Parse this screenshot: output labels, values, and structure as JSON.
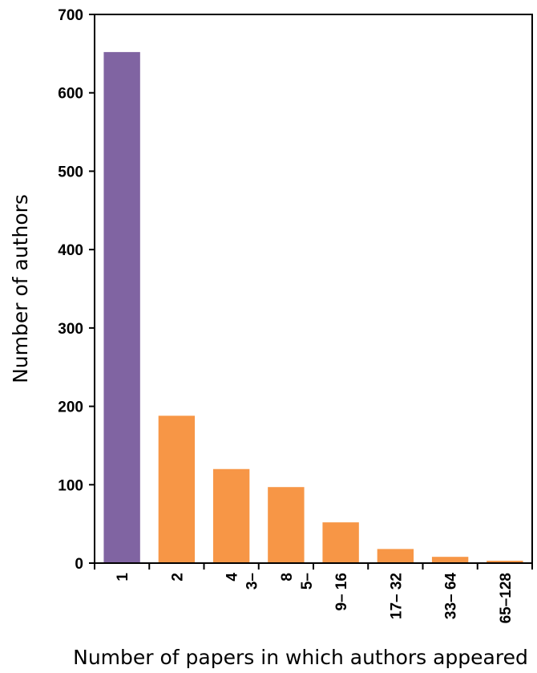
{
  "chart_data": {
    "type": "bar",
    "title": "",
    "xlabel": "Number of papers in which authors appeared",
    "ylabel": "Number of authors",
    "ylim": [
      0,
      700
    ],
    "yticks": [
      0,
      100,
      200,
      300,
      400,
      500,
      600,
      700
    ],
    "grid": false,
    "legend": "none",
    "categories": [
      "1",
      "2",
      "3– 4",
      "5– 8",
      "9– 16",
      "17– 32",
      "33– 64",
      "65–128"
    ],
    "category_lines": [
      [
        "1"
      ],
      [
        "2"
      ],
      [
        "4",
        "3–"
      ],
      [
        "8",
        "5–"
      ],
      [
        "9– 16"
      ],
      [
        "17– 32"
      ],
      [
        "33– 64"
      ],
      [
        "65–128"
      ]
    ],
    "values": [
      652,
      188,
      120,
      97,
      52,
      18,
      8,
      3
    ],
    "bar_colors": [
      "#8064A2",
      "#F79646",
      "#F79646",
      "#F79646",
      "#F79646",
      "#F79646",
      "#F79646",
      "#F79646"
    ]
  }
}
